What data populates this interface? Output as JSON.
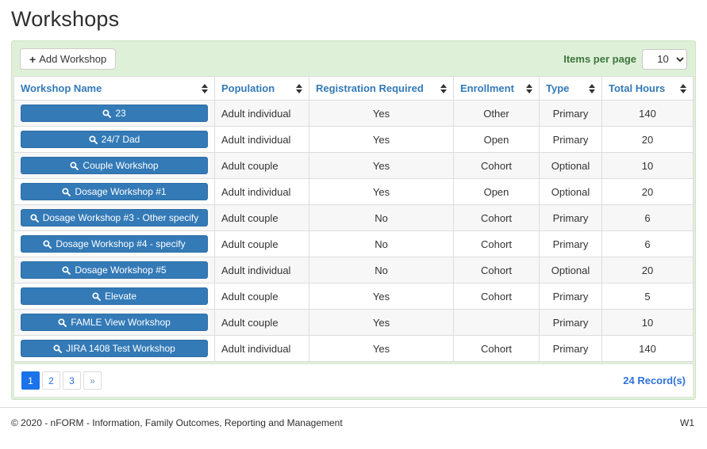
{
  "page": {
    "title": "Workshops"
  },
  "toolbar": {
    "add_button_label": "Add Workshop",
    "items_per_page_label": "Items per page",
    "items_per_page_value": "10"
  },
  "table": {
    "columns": [
      "Workshop Name",
      "Population",
      "Registration Required",
      "Enrollment",
      "Type",
      "Total Hours"
    ],
    "rows": [
      {
        "name": "23",
        "population": "Adult individual",
        "registration_required": "Yes",
        "enrollment": "Other",
        "type": "Primary",
        "total_hours": "140"
      },
      {
        "name": "24/7 Dad",
        "population": "Adult individual",
        "registration_required": "Yes",
        "enrollment": "Open",
        "type": "Primary",
        "total_hours": "20"
      },
      {
        "name": "Couple Workshop",
        "population": "Adult couple",
        "registration_required": "Yes",
        "enrollment": "Cohort",
        "type": "Optional",
        "total_hours": "10"
      },
      {
        "name": "Dosage Workshop #1",
        "population": "Adult individual",
        "registration_required": "Yes",
        "enrollment": "Open",
        "type": "Optional",
        "total_hours": "20"
      },
      {
        "name": "Dosage Workshop #3 - Other specify",
        "population": "Adult couple",
        "registration_required": "No",
        "enrollment": "Cohort",
        "type": "Primary",
        "total_hours": "6"
      },
      {
        "name": "Dosage Workshop #4 - specify",
        "population": "Adult couple",
        "registration_required": "No",
        "enrollment": "Cohort",
        "type": "Primary",
        "total_hours": "6"
      },
      {
        "name": "Dosage Workshop #5",
        "population": "Adult individual",
        "registration_required": "No",
        "enrollment": "Cohort",
        "type": "Optional",
        "total_hours": "20"
      },
      {
        "name": "Elevate",
        "population": "Adult couple",
        "registration_required": "Yes",
        "enrollment": "Cohort",
        "type": "Primary",
        "total_hours": "5"
      },
      {
        "name": "FAMLE View Workshop",
        "population": "Adult couple",
        "registration_required": "Yes",
        "enrollment": "",
        "type": "Primary",
        "total_hours": "10"
      },
      {
        "name": "JIRA 1408 Test Workshop",
        "population": "Adult individual",
        "registration_required": "Yes",
        "enrollment": "Cohort",
        "type": "Primary",
        "total_hours": "140"
      }
    ]
  },
  "pagination": {
    "pages": [
      "1",
      "2",
      "3"
    ],
    "active_page": "1",
    "next_label": "»",
    "records_label": "24 Record(s)"
  },
  "footer": {
    "copyright": "© 2020 - nFORM - Information, Family Outcomes, Reporting and Management",
    "environment": "W1"
  },
  "colors": {
    "panel_green": "#dff0d8",
    "header_link_blue": "#337ab7",
    "workshop_button_blue": "#337ab7",
    "active_page_blue": "#1a73e8",
    "success_text_green": "#3c763d"
  }
}
